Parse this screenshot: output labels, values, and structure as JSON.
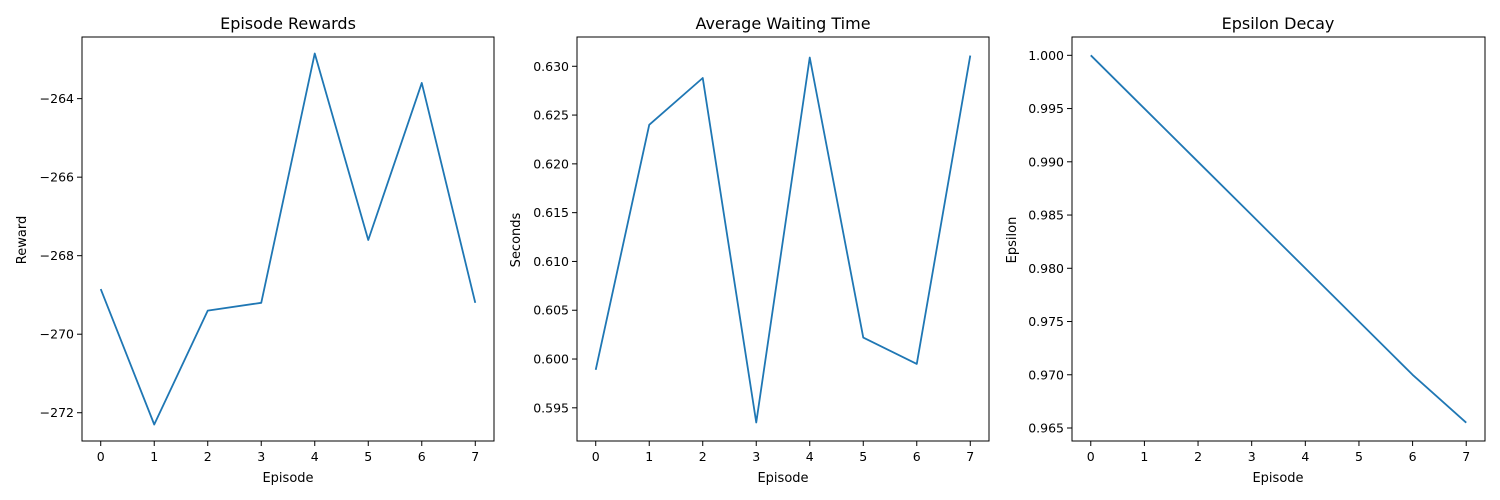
{
  "chart_data": [
    {
      "type": "line",
      "title": "Episode Rewards",
      "xlabel": "Episode",
      "ylabel": "Reward",
      "x": [
        0,
        1,
        2,
        3,
        4,
        5,
        6,
        7
      ],
      "series": [
        {
          "values": [
            -268.85,
            -272.3,
            -269.4,
            -269.2,
            -262.85,
            -267.6,
            -263.6,
            -269.2
          ],
          "color": "#1f77b4"
        }
      ],
      "xticks": [
        "0",
        "1",
        "2",
        "3",
        "4",
        "5",
        "6",
        "7"
      ],
      "yticks": [
        "−272",
        "−270",
        "−268",
        "−266",
        "−264"
      ],
      "ytick_values": [
        -272,
        -270,
        -268,
        -266,
        -264
      ],
      "xlim": [
        -0.35,
        7.35
      ],
      "ylim": [
        -272.72,
        -262.43
      ],
      "grid": false
    },
    {
      "type": "line",
      "title": "Average Waiting Time",
      "xlabel": "Episode",
      "ylabel": "Seconds",
      "x": [
        0,
        1,
        2,
        3,
        4,
        5,
        6,
        7
      ],
      "series": [
        {
          "values": [
            0.5989,
            0.624,
            0.6288,
            0.5935,
            0.6309,
            0.6022,
            0.5995,
            0.6311
          ],
          "color": "#1f77b4"
        }
      ],
      "xticks": [
        "0",
        "1",
        "2",
        "3",
        "4",
        "5",
        "6",
        "7"
      ],
      "yticks": [
        "0.595",
        "0.600",
        "0.605",
        "0.610",
        "0.615",
        "0.620",
        "0.625",
        "0.630"
      ],
      "ytick_values": [
        0.595,
        0.6,
        0.605,
        0.61,
        0.615,
        0.62,
        0.625,
        0.63
      ],
      "xlim": [
        -0.35,
        7.35
      ],
      "ylim": [
        0.5916,
        0.633
      ],
      "grid": false
    },
    {
      "type": "line",
      "title": "Epsilon Decay",
      "xlabel": "Episode",
      "ylabel": "Epsilon",
      "x": [
        0,
        1,
        2,
        3,
        4,
        5,
        6,
        7
      ],
      "series": [
        {
          "values": [
            1.0,
            0.995,
            0.99,
            0.985,
            0.98,
            0.975,
            0.97,
            0.9655
          ],
          "color": "#1f77b4"
        }
      ],
      "xticks": [
        "0",
        "1",
        "2",
        "3",
        "4",
        "5",
        "6",
        "7"
      ],
      "yticks": [
        "0.965",
        "0.970",
        "0.975",
        "0.980",
        "0.985",
        "0.990",
        "0.995",
        "1.000"
      ],
      "ytick_values": [
        0.965,
        0.97,
        0.975,
        0.98,
        0.985,
        0.99,
        0.995,
        1.0
      ],
      "xlim": [
        -0.35,
        7.35
      ],
      "ylim": [
        0.96378,
        1.00172
      ],
      "grid": false
    }
  ]
}
